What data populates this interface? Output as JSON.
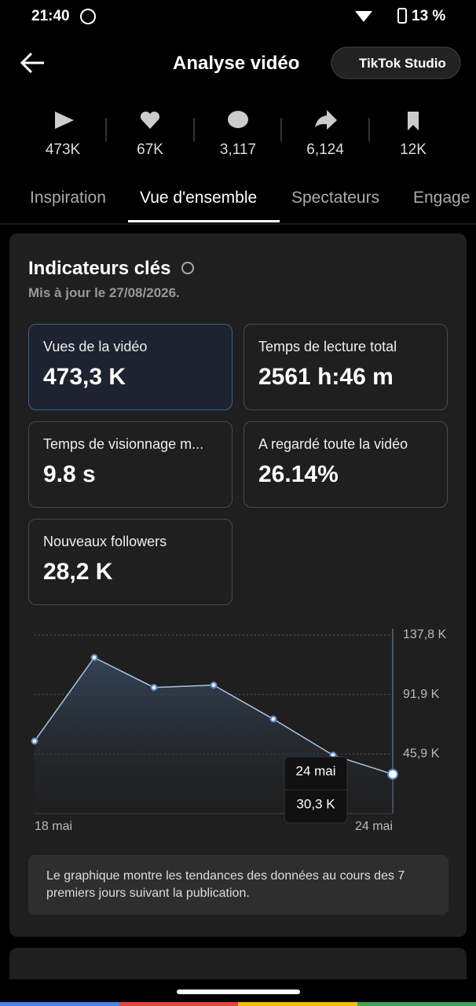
{
  "status_bar": {
    "time": "21:40",
    "battery": "13 %"
  },
  "header": {
    "title": "Analyse vidéo",
    "button": "TikTok Studio"
  },
  "stats": [
    "473K",
    "67K",
    "3,117",
    "6,124",
    "12K"
  ],
  "tabs": [
    "Inspiration",
    "Vue d'ensemble",
    "Spectateurs",
    "Engage"
  ],
  "card": {
    "title": "Indicateurs clés",
    "subtitle": "Mis à jour le 27/08/2026.",
    "metrics": [
      {
        "label": "Vues de la vidéo",
        "value": "473,3 K"
      },
      {
        "label": "Temps de lecture total",
        "value": "2561 h:46 m"
      },
      {
        "label": "Temps de visionnage m...",
        "value": "9.8 s"
      },
      {
        "label": "A regardé toute la vidéo",
        "value": "26.14%"
      },
      {
        "label": "Nouveaux followers",
        "value": "28,2 K"
      }
    ]
  },
  "chart_data": {
    "type": "area",
    "categories": [
      "18 mai",
      null,
      null,
      null,
      null,
      null,
      "24 mai"
    ],
    "values": [
      55.9,
      120.4,
      97.3,
      99.1,
      72.9,
      45.0,
      30.3
    ],
    "value_labels": [
      null,
      null,
      null,
      null,
      null,
      null,
      "30,3 K"
    ],
    "color": "#a9c4e4",
    "ylim": [
      0,
      137.8
    ],
    "yticks": [
      {
        "value": 45.9,
        "label": "45,9 K"
      },
      {
        "value": 91.9,
        "label": "91,9 K"
      },
      {
        "value": 137.8,
        "label": "137,8 K"
      }
    ],
    "grid": true
  },
  "note": "Le graphique montre les tendances des données au cours des 7 premiers jours suivant la publication."
}
